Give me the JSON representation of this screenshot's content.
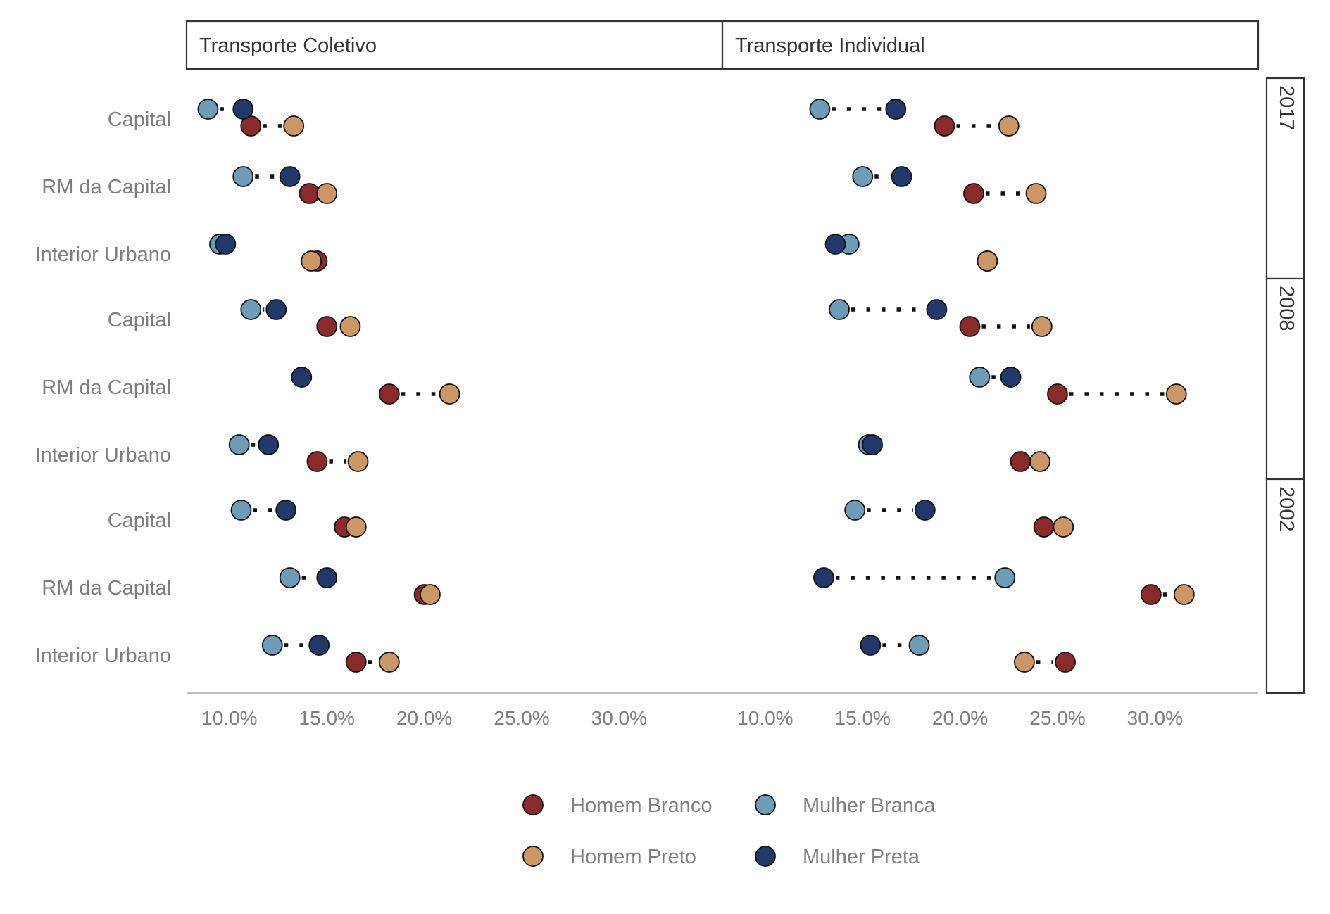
{
  "chart_data": {
    "type": "scatter",
    "facets_columns": [
      "Transporte Coletivo",
      "Transporte Individual"
    ],
    "facets_rows": [
      "2017",
      "2008",
      "2002"
    ],
    "row_labels": [
      "Capital",
      "RM da Capital",
      "Interior Urbano"
    ],
    "x_ticks": [
      "10.0%",
      "15.0%",
      "20.0%",
      "25.0%",
      "30.0%"
    ],
    "x_tick_values": [
      10,
      15,
      20,
      25,
      30
    ],
    "xlim": [
      7.8,
      35.3
    ],
    "series": [
      {
        "name": "Homem Branco",
        "color": "#8b2a2a",
        "pair": "homem",
        "offset": "lower"
      },
      {
        "name": "Homem Preto",
        "color": "#cc9766",
        "pair": "homem",
        "offset": "lower"
      },
      {
        "name": "Mulher Branca",
        "color": "#6e9cb8",
        "pair": "mulher",
        "offset": "upper"
      },
      {
        "name": "Mulher Preta",
        "color": "#22386a",
        "pair": "mulher",
        "offset": "upper"
      }
    ],
    "legend_position": "bottom",
    "data": {
      "Transporte Coletivo": {
        "2017": {
          "Capital": {
            "Homem Branco": 11.1,
            "Homem Preto": 13.3,
            "Mulher Branca": 8.9,
            "Mulher Preta": 10.7
          },
          "RM da Capital": {
            "Homem Branco": 14.1,
            "Homem Preto": 15.0,
            "Mulher Branca": 10.7,
            "Mulher Preta": 13.1
          },
          "Interior Urbano": {
            "Homem Branco": 14.5,
            "Homem Preto": 14.2,
            "Mulher Branca": 9.5,
            "Mulher Preta": 9.8
          }
        },
        "2008": {
          "Capital": {
            "Homem Branco": 15.0,
            "Homem Preto": 16.2,
            "Mulher Branca": 11.1,
            "Mulher Preta": 12.4
          },
          "RM da Capital": {
            "Homem Branco": 18.2,
            "Homem Preto": 21.3,
            "Mulher Preta": 13.7
          },
          "Interior Urbano": {
            "Homem Branco": 14.5,
            "Homem Preto": 16.6,
            "Mulher Branca": 10.5,
            "Mulher Preta": 12.0
          }
        },
        "2002": {
          "Capital": {
            "Homem Branco": 15.9,
            "Homem Preto": 16.5,
            "Mulher Branca": 10.6,
            "Mulher Preta": 12.9
          },
          "RM da Capital": {
            "Homem Branco": 20.0,
            "Homem Preto": 20.3,
            "Mulher Branca": 13.1,
            "Mulher Preta": 15.0
          },
          "Interior Urbano": {
            "Homem Branco": 16.5,
            "Homem Preto": 18.2,
            "Mulher Branca": 12.2,
            "Mulher Preta": 14.6
          }
        }
      },
      "Transporte Individual": {
        "2017": {
          "Capital": {
            "Homem Branco": 19.2,
            "Homem Preto": 22.5,
            "Mulher Branca": 12.8,
            "Mulher Preta": 16.7
          },
          "RM da Capital": {
            "Homem Branco": 20.7,
            "Homem Preto": 23.9,
            "Mulher Branca": 15.0,
            "Mulher Preta": 17.0
          },
          "Interior Urbano": {
            "Homem Branco": 21.4,
            "Homem Preto": 21.4,
            "Mulher Branca": 14.3,
            "Mulher Preta": 13.6
          }
        },
        "2008": {
          "Capital": {
            "Homem Branco": 20.5,
            "Homem Preto": 24.2,
            "Mulher Branca": 13.8,
            "Mulher Preta": 18.8
          },
          "RM da Capital": {
            "Homem Branco": 25.0,
            "Homem Preto": 31.1,
            "Mulher Branca": 21.0,
            "Mulher Preta": 22.6
          },
          "Interior Urbano": {
            "Homem Branco": 23.1,
            "Homem Preto": 24.1,
            "Mulher Branca": 15.3,
            "Mulher Preta": 15.5
          }
        },
        "2002": {
          "Capital": {
            "Homem Branco": 24.3,
            "Homem Preto": 25.3,
            "Mulher Branca": 14.6,
            "Mulher Preta": 18.2
          },
          "RM da Capital": {
            "Homem Branco": 29.8,
            "Homem Preto": 31.5,
            "Mulher Branca": 22.3,
            "Mulher Preta": 13.0
          },
          "Interior Urbano": {
            "Homem Branco": 25.4,
            "Homem Preto": 23.3,
            "Mulher Branca": 17.9,
            "Mulher Preta": 15.4
          }
        }
      }
    }
  }
}
